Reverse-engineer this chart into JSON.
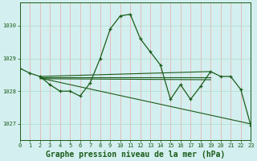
{
  "title": "Graphe pression niveau de la mer (hPa)",
  "plot_bg_color": "#d4efef",
  "fig_bg_color": "#d4efef",
  "line_color": "#1a5c1a",
  "grid_color_v": "#e8aaaa",
  "grid_color_h": "#aaddcc",
  "x_labels": [
    "0",
    "1",
    "2",
    "3",
    "4",
    "5",
    "6",
    "7",
    "8",
    "9",
    "10",
    "11",
    "12",
    "13",
    "14",
    "15",
    "16",
    "17",
    "18",
    "19",
    "20",
    "21",
    "22",
    "23"
  ],
  "xlim": [
    0,
    23
  ],
  "ylim": [
    1026.5,
    1030.7
  ],
  "yticks": [
    1027,
    1028,
    1029,
    1030
  ],
  "main_series": [
    1028.7,
    1028.55,
    1028.45,
    1028.2,
    1028.0,
    1028.0,
    1027.85,
    1028.25,
    1029.0,
    1029.9,
    1030.3,
    1030.35,
    1029.6,
    1029.2,
    1028.8,
    1027.75,
    1028.2,
    1027.75,
    1028.15,
    1028.6,
    1028.45,
    1028.45,
    1028.05,
    1026.95
  ],
  "line1": [
    [
      2,
      19
    ],
    [
      1028.45,
      1028.6
    ]
  ],
  "line2": [
    [
      2,
      19
    ],
    [
      1028.42,
      1028.42
    ]
  ],
  "line3": [
    [
      2,
      19
    ],
    [
      1028.38,
      1028.35
    ]
  ],
  "line4": [
    [
      2,
      23
    ],
    [
      1028.4,
      1027.0
    ]
  ],
  "tick_label_color": "#1a5c1a",
  "title_color": "#1a5c1a",
  "title_fontsize": 7,
  "tick_fontsize": 5
}
